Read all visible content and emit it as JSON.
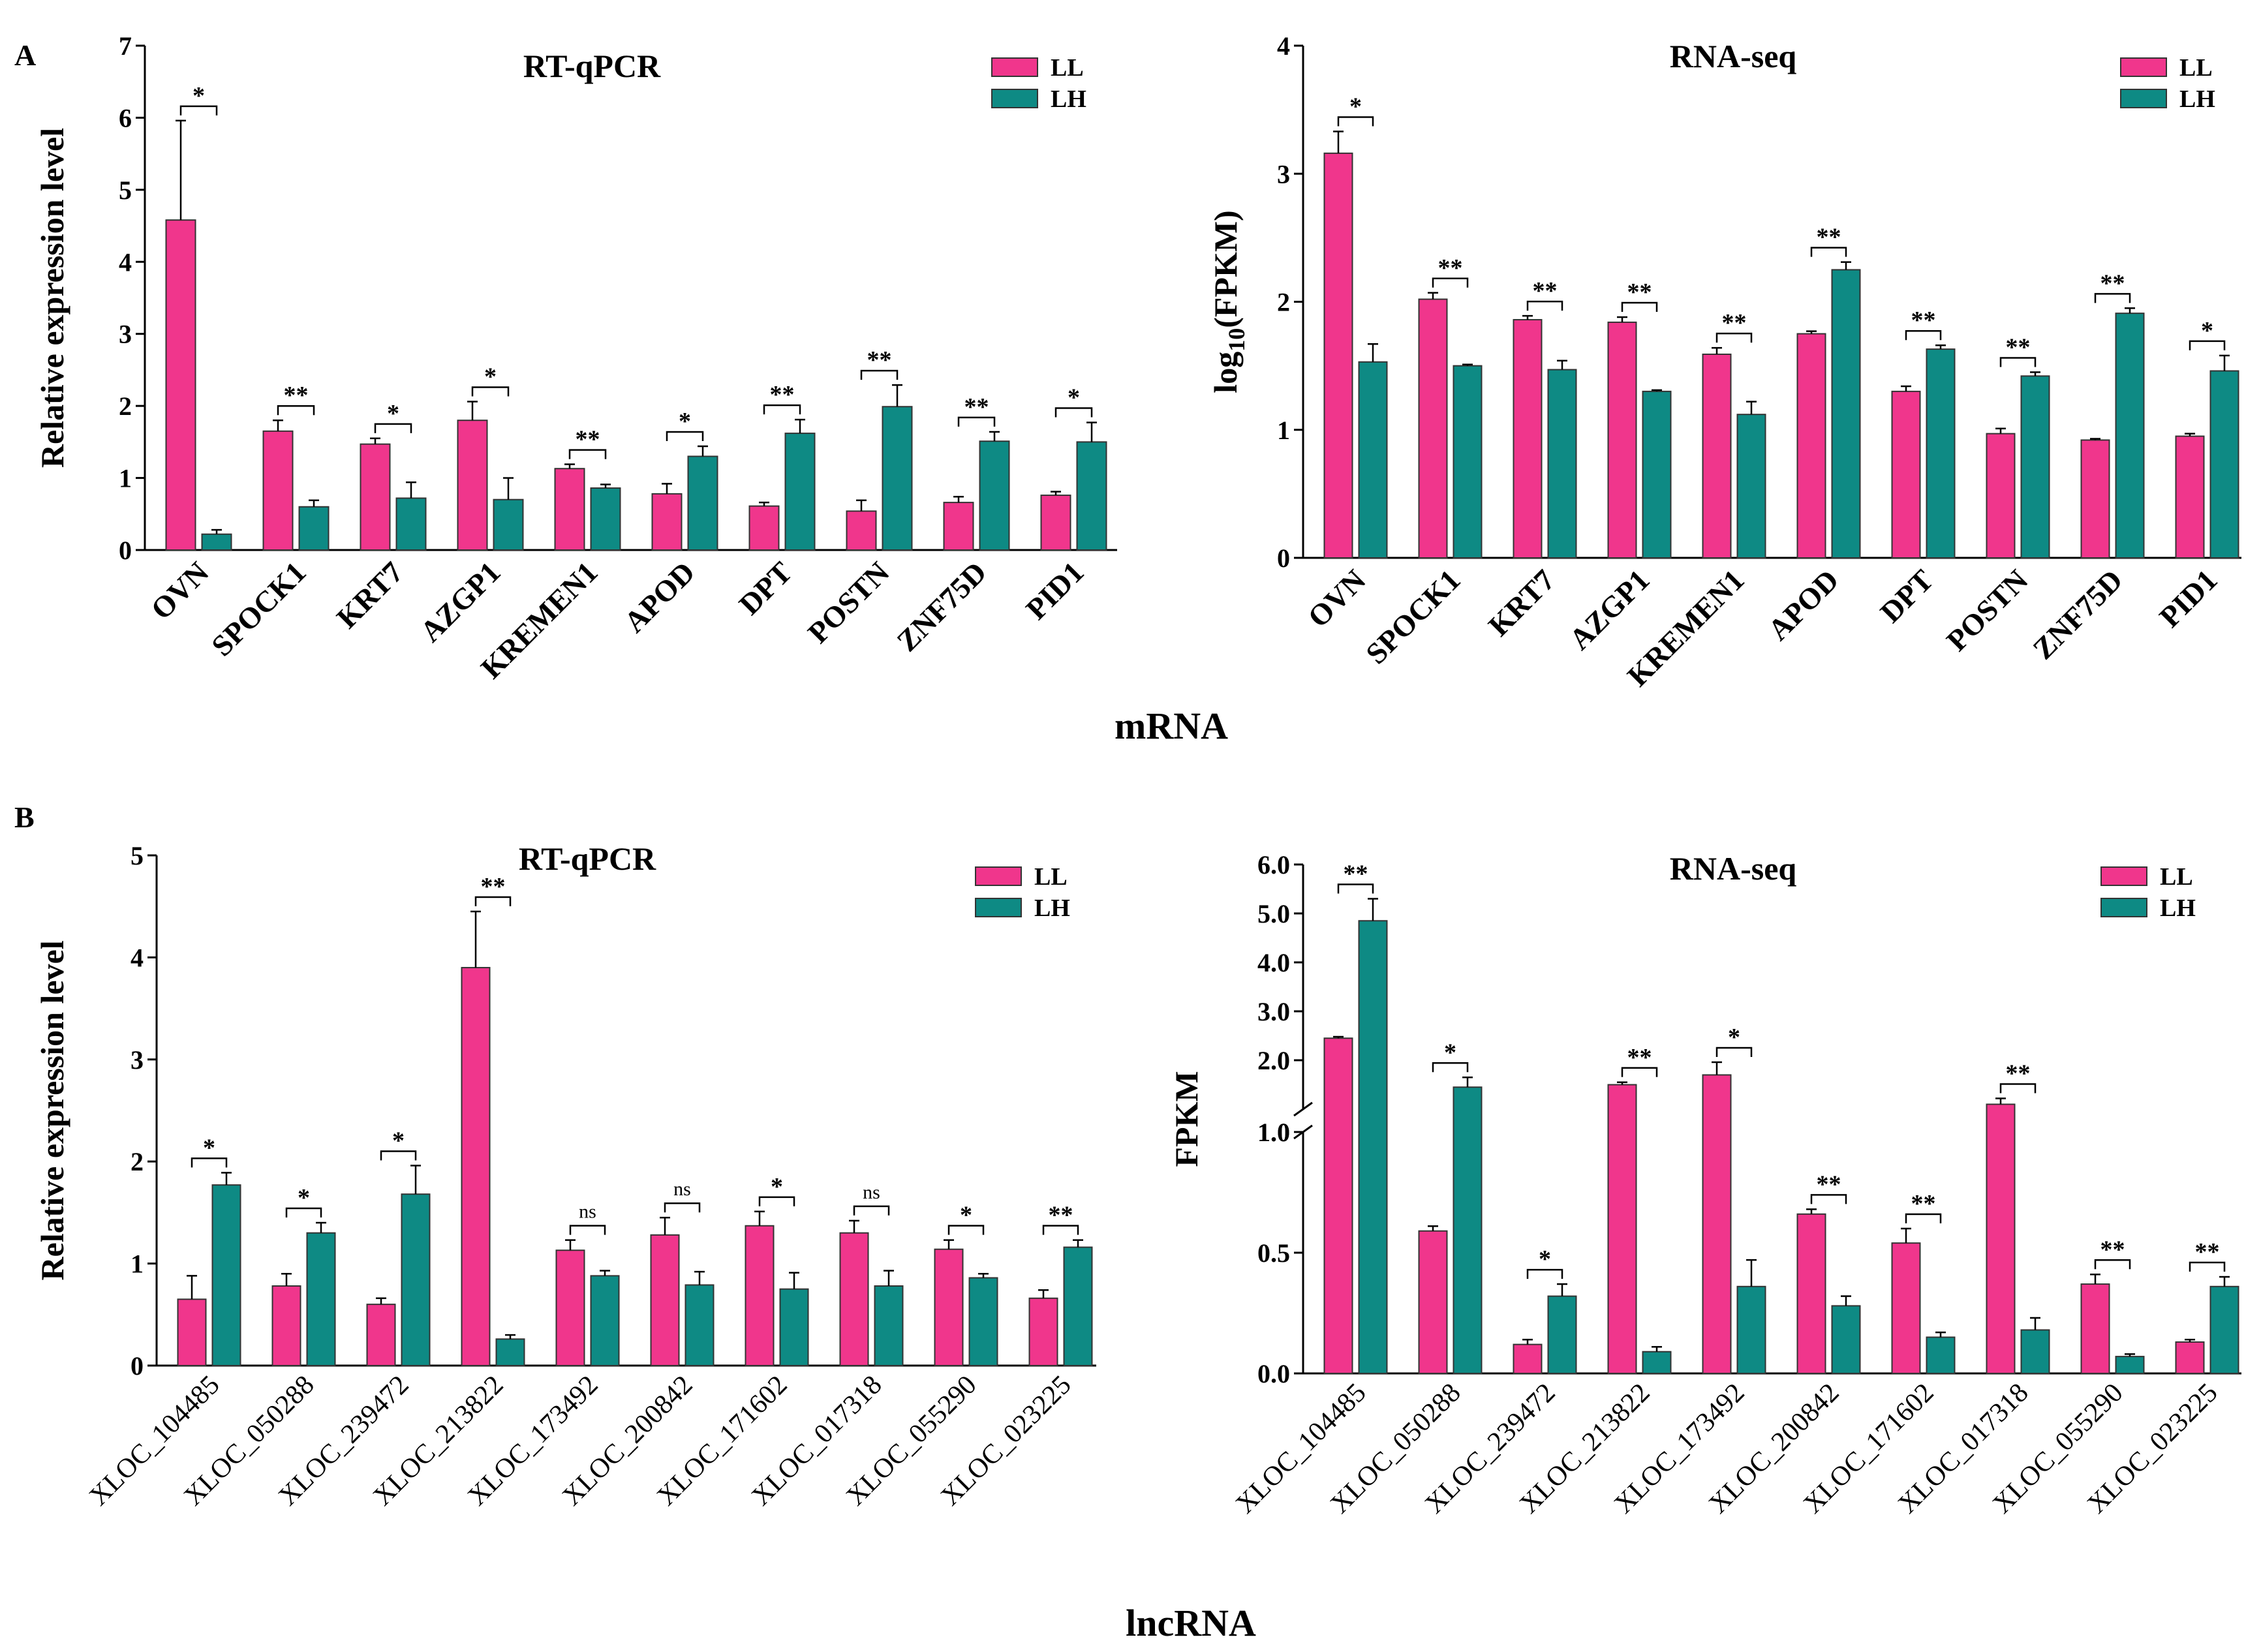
{
  "colors": {
    "LL": "#F0368C",
    "LH": "#0E8A84",
    "axis": "#000000"
  },
  "panel_labels": {
    "A": "A",
    "B": "B"
  },
  "section_labels": {
    "top": "mRNA",
    "bottom": "lncRNA"
  },
  "chart_data": [
    {
      "id": "A_rtqpcr",
      "type": "bar",
      "title": "RT-qPCR",
      "ylabel": "Relative expression level",
      "ylim": [
        0,
        7
      ],
      "yticks": [
        0,
        1,
        2,
        3,
        4,
        5,
        6,
        7
      ],
      "ytick_labels": [
        "0",
        "1",
        "2",
        "3",
        "4",
        "5",
        "6",
        "7"
      ],
      "categories": [
        "OVN",
        "SPOCK1",
        "KRT7",
        "AZGP1",
        "KREMEN1",
        "APOD",
        "DPT",
        "POSTN",
        "ZNF75D",
        "PID1"
      ],
      "series": [
        {
          "name": "LL",
          "values": [
            4.58,
            1.65,
            1.47,
            1.8,
            1.13,
            0.78,
            0.61,
            0.54,
            0.66,
            0.76
          ],
          "errors": [
            1.38,
            0.15,
            0.08,
            0.26,
            0.06,
            0.14,
            0.05,
            0.15,
            0.08,
            0.05
          ]
        },
        {
          "name": "LH",
          "values": [
            0.22,
            0.6,
            0.72,
            0.7,
            0.86,
            1.3,
            1.62,
            1.99,
            1.51,
            1.5
          ],
          "errors": [
            0.06,
            0.09,
            0.22,
            0.3,
            0.05,
            0.14,
            0.19,
            0.3,
            0.13,
            0.27
          ]
        }
      ],
      "significance": [
        "*",
        "**",
        "*",
        "*",
        "**",
        "*",
        "**",
        "**",
        "**",
        "*"
      ]
    },
    {
      "id": "A_rnaseq",
      "type": "bar",
      "title": "RNA-seq",
      "ylabel": "log10(FPKM)",
      "ylim": [
        0,
        4
      ],
      "yticks": [
        0,
        1,
        2,
        3,
        4
      ],
      "ytick_labels": [
        "0",
        "1",
        "2",
        "3",
        "4"
      ],
      "categories": [
        "OVN",
        "SPOCK1",
        "KRT7",
        "AZGP1",
        "KREMEN1",
        "APOD",
        "DPT",
        "POSTN",
        "ZNF75D",
        "PID1"
      ],
      "series": [
        {
          "name": "LL",
          "values": [
            3.16,
            2.02,
            1.86,
            1.84,
            1.59,
            1.75,
            1.3,
            0.97,
            0.92,
            0.95
          ],
          "errors": [
            0.17,
            0.05,
            0.03,
            0.04,
            0.05,
            0.02,
            0.04,
            0.04,
            0.01,
            0.02
          ]
        },
        {
          "name": "LH",
          "values": [
            1.53,
            1.5,
            1.47,
            1.3,
            1.12,
            2.25,
            1.63,
            1.42,
            1.91,
            1.46
          ],
          "errors": [
            0.14,
            0.01,
            0.07,
            0.01,
            0.1,
            0.06,
            0.03,
            0.03,
            0.04,
            0.12
          ]
        }
      ],
      "significance": [
        "*",
        "**",
        "**",
        "**",
        "**",
        "**",
        "**",
        "**",
        "**",
        "*"
      ]
    },
    {
      "id": "B_rtqpcr",
      "type": "bar",
      "title": "RT-qPCR",
      "ylabel": "Relative expression level",
      "ylim": [
        0,
        5
      ],
      "yticks": [
        0,
        1,
        2,
        3,
        4,
        5
      ],
      "ytick_labels": [
        "0",
        "1",
        "2",
        "3",
        "4",
        "5"
      ],
      "categories": [
        "XLOC_104485",
        "XLOC_050288",
        "XLOC_239472",
        "XLOC_213822",
        "XLOC_173492",
        "XLOC_200842",
        "XLOC_171602",
        "XLOC_017318",
        "XLOC_055290",
        "XLOC_023225"
      ],
      "series": [
        {
          "name": "LL",
          "values": [
            0.65,
            0.78,
            0.6,
            3.9,
            1.13,
            1.28,
            1.37,
            1.3,
            1.14,
            0.66
          ],
          "errors": [
            0.23,
            0.12,
            0.06,
            0.55,
            0.1,
            0.17,
            0.14,
            0.12,
            0.09,
            0.08
          ]
        },
        {
          "name": "LH",
          "values": [
            1.77,
            1.3,
            1.68,
            0.26,
            0.88,
            0.79,
            0.75,
            0.78,
            0.86,
            1.16
          ],
          "errors": [
            0.12,
            0.1,
            0.28,
            0.04,
            0.05,
            0.13,
            0.16,
            0.15,
            0.04,
            0.07
          ]
        }
      ],
      "significance": [
        "*",
        "*",
        "*",
        "**",
        "ns",
        "ns",
        "*",
        "ns",
        "*",
        "**"
      ]
    },
    {
      "id": "B_rnaseq",
      "type": "bar",
      "title": "RNA-seq",
      "ylabel": "FPKM",
      "axis_break": true,
      "ylim": [
        0,
        6
      ],
      "lower_range": [
        0,
        1
      ],
      "upper_range": [
        1,
        6
      ],
      "yticks_lower": [
        0,
        0.5,
        1
      ],
      "ytick_labels_lower": [
        "0.0",
        "0.5",
        "1.0"
      ],
      "yticks_upper": [
        1,
        2,
        3,
        4,
        5,
        6
      ],
      "ytick_labels_upper": [
        "1.0",
        "2.0",
        "3.0",
        "4.0",
        "5.0",
        "6.0"
      ],
      "categories": [
        "XLOC_104485",
        "XLOC_050288",
        "XLOC_239472",
        "XLOC_213822",
        "XLOC_173492",
        "XLOC_200842",
        "XLOC_171602",
        "XLOC_017318",
        "XLOC_055290",
        "XLOC_023225"
      ],
      "series": [
        {
          "name": "LL",
          "values": [
            2.45,
            0.59,
            0.12,
            1.5,
            1.7,
            0.66,
            0.54,
            1.1,
            0.37,
            0.13
          ],
          "errors": [
            0.03,
            0.02,
            0.02,
            0.05,
            0.26,
            0.02,
            0.06,
            0.12,
            0.04,
            0.01
          ]
        },
        {
          "name": "LH",
          "values": [
            4.85,
            1.45,
            0.32,
            0.09,
            0.36,
            0.28,
            0.15,
            0.18,
            0.07,
            0.36
          ],
          "errors": [
            0.45,
            0.2,
            0.05,
            0.02,
            0.11,
            0.04,
            0.02,
            0.05,
            0.01,
            0.04
          ]
        }
      ],
      "significance": [
        "**",
        "*",
        "*",
        "**",
        "*",
        "**",
        "**",
        "**",
        "**",
        "**"
      ]
    }
  ]
}
